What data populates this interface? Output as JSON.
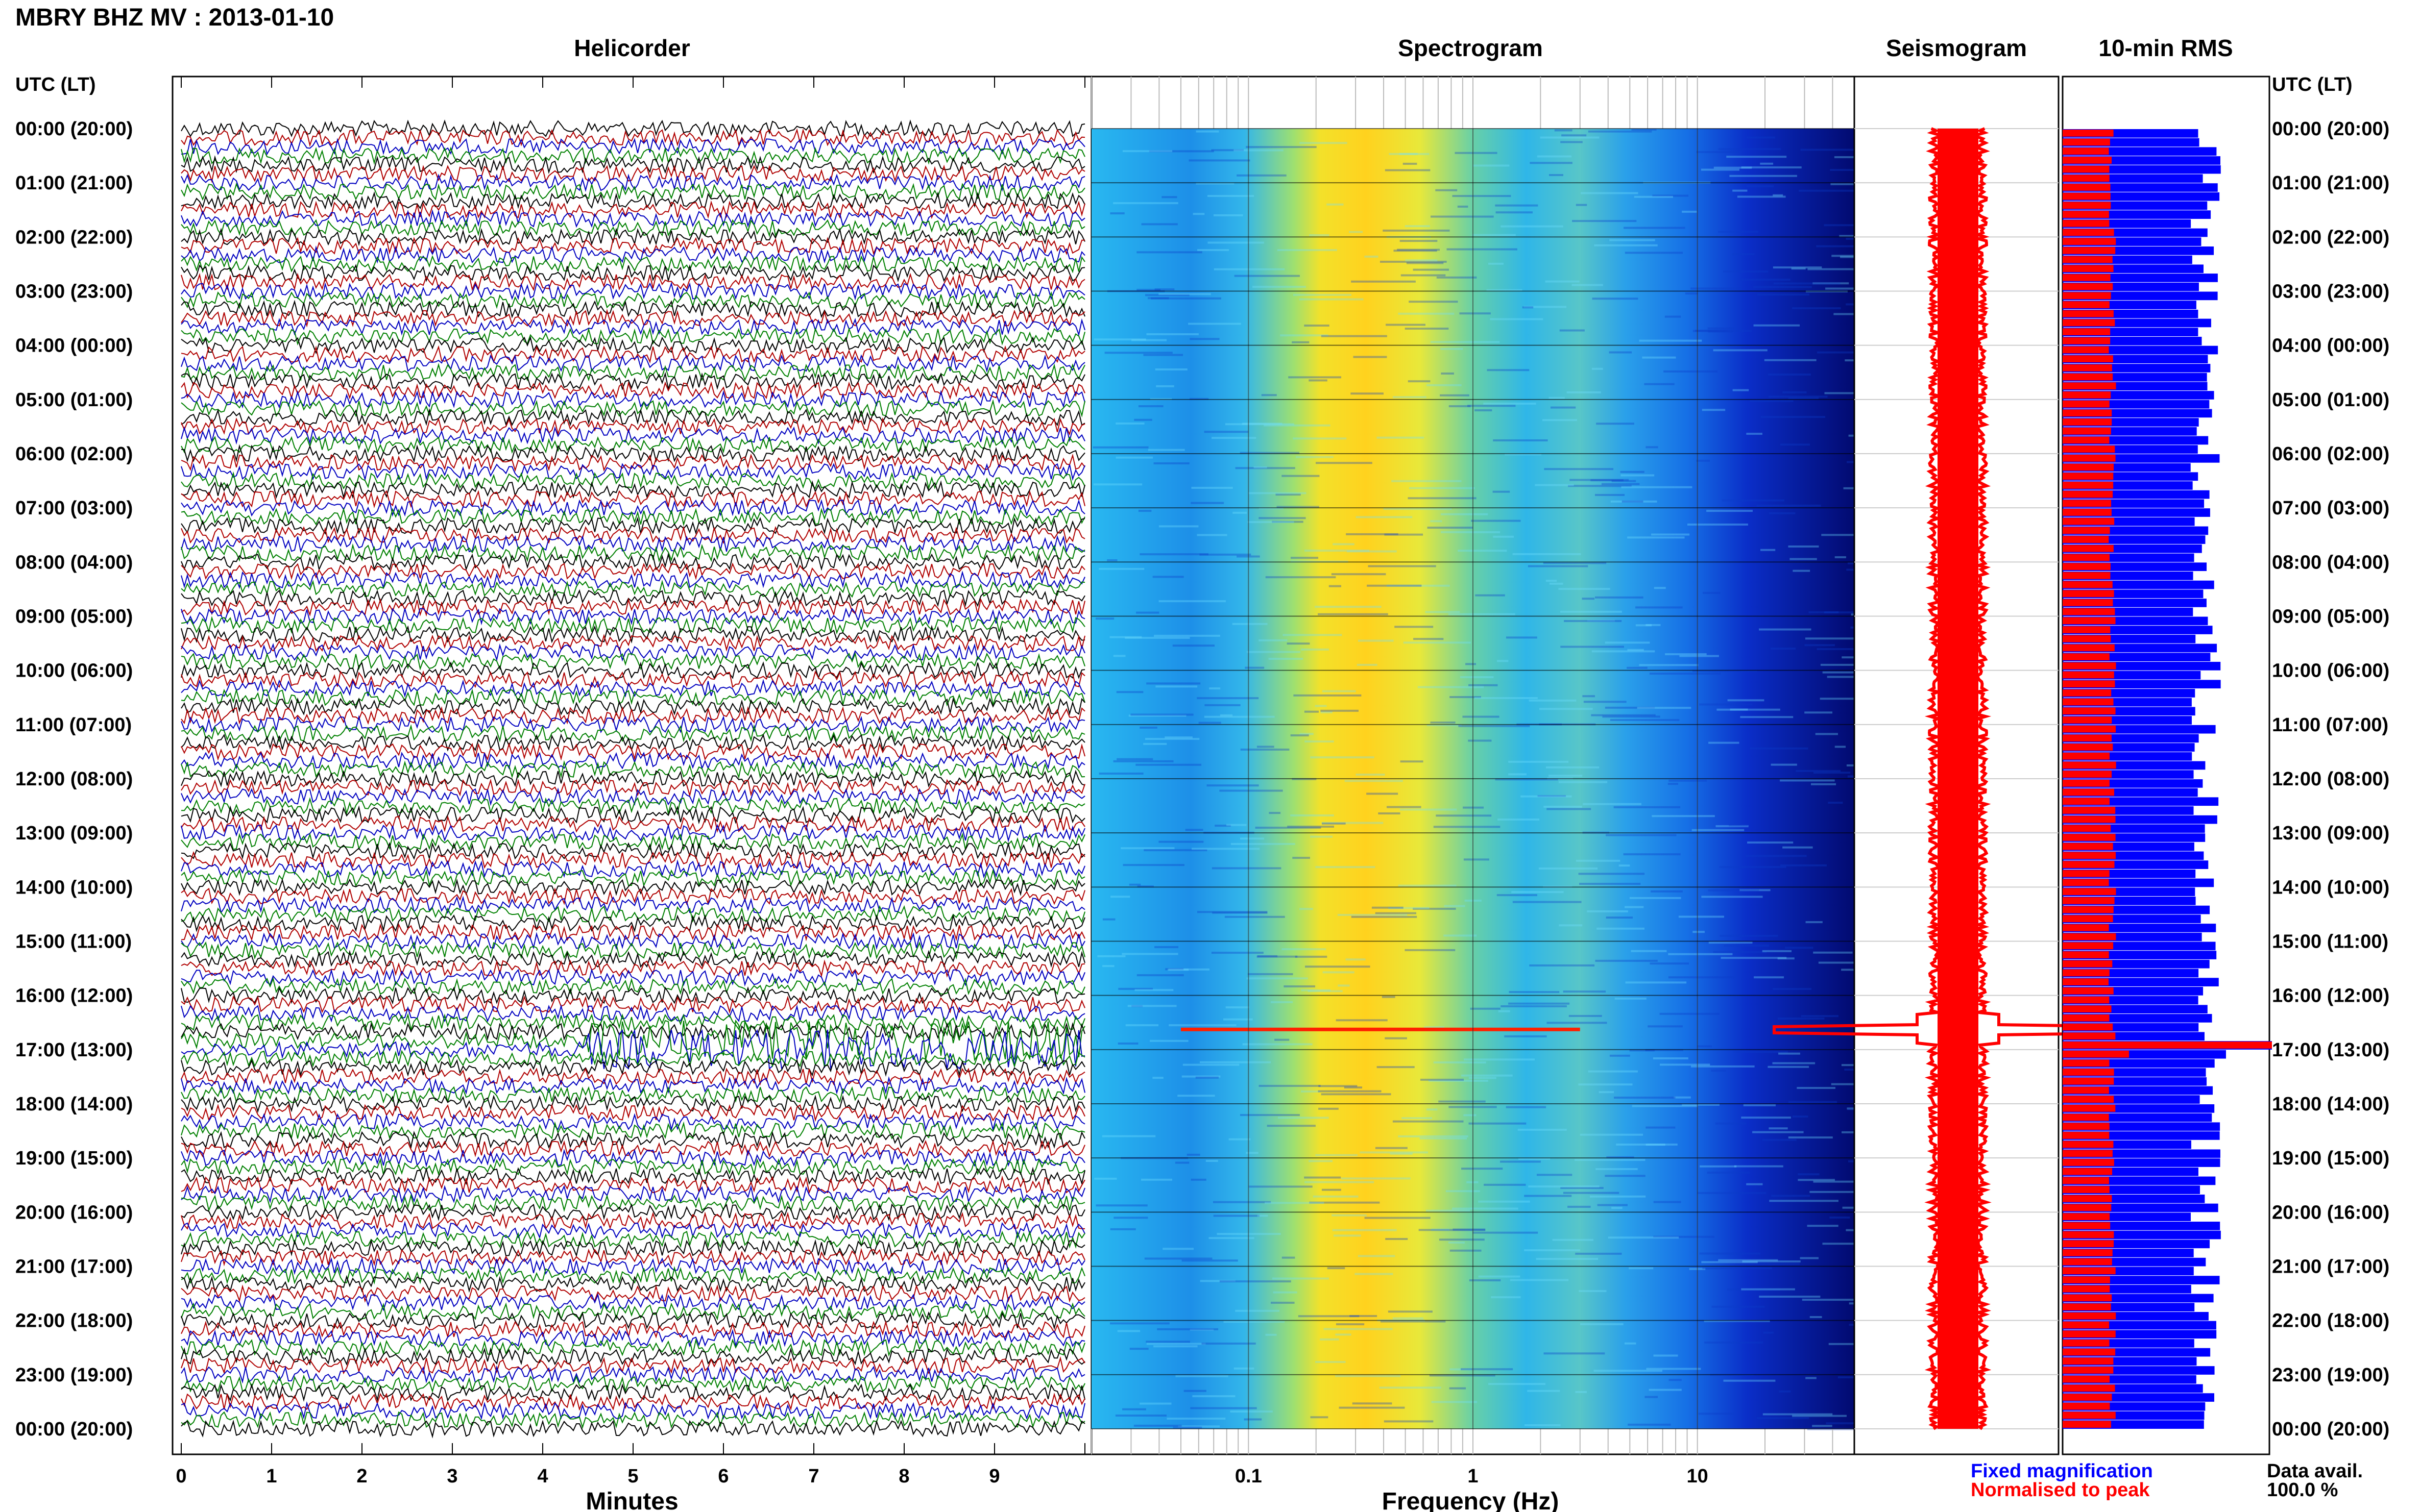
{
  "page": {
    "title": "MBRY BHZ MV : 2013-01-10",
    "axis_time_label": "UTC (LT)",
    "data_avail_label": "Data avail.",
    "data_avail_value": "100.0 %",
    "legend": {
      "fixed": "Fixed magnification",
      "normalised": "Normalised to peak",
      "fixed_color": "#0000ff",
      "normalised_color": "#ff0000"
    }
  },
  "chart_data": [
    {
      "type": "line",
      "panel": "helicorder",
      "title": "Helicorder",
      "xlabel": "Minutes",
      "xlim": [
        0,
        10
      ],
      "xticks": [
        "0",
        "1",
        "2",
        "3",
        "4",
        "5",
        "6",
        "7",
        "8",
        "9"
      ],
      "rows": 144,
      "trace_colors": [
        "#000000",
        "#b00000",
        "#0000c0",
        "#008000"
      ],
      "event": {
        "time_utc": "16:50",
        "minutes": [
          4.5,
          10
        ]
      }
    },
    {
      "type": "heatmap",
      "panel": "spectrogram",
      "title": "Spectrogram",
      "xlabel": "Frequency (Hz)",
      "xscale": "log",
      "xlim": [
        0.02,
        50
      ],
      "xticks": [
        "0.1",
        "1",
        "10"
      ],
      "event": {
        "time_utc": "17:00",
        "freq_range_hz": [
          0.05,
          3
        ]
      }
    },
    {
      "type": "line",
      "panel": "seismogram",
      "title": "Seismogram",
      "event": {
        "time_utc": "17:00"
      },
      "color": "#ff0000"
    },
    {
      "type": "bar",
      "panel": "rms",
      "title": "10-min RMS",
      "orientation": "horizontal",
      "series": [
        {
          "name": "Fixed magnification",
          "color": "#0000ff"
        },
        {
          "name": "Normalised to peak",
          "color": "#ff0000"
        }
      ],
      "event": {
        "time_utc": "17:00",
        "normalised": 1.0
      }
    }
  ],
  "time_labels": [
    "00:00 (20:00)",
    "01:00 (21:00)",
    "02:00 (22:00)",
    "03:00 (23:00)",
    "04:00 (00:00)",
    "05:00 (01:00)",
    "06:00 (02:00)",
    "07:00 (03:00)",
    "08:00 (04:00)",
    "09:00 (05:00)",
    "10:00 (06:00)",
    "11:00 (07:00)",
    "12:00 (08:00)",
    "13:00 (09:00)",
    "14:00 (10:00)",
    "15:00 (11:00)",
    "16:00 (12:00)",
    "17:00 (13:00)",
    "18:00 (14:00)",
    "19:00 (15:00)",
    "20:00 (16:00)",
    "21:00 (17:00)",
    "22:00 (18:00)",
    "23:00 (19:00)",
    "00:00 (20:00)"
  ]
}
